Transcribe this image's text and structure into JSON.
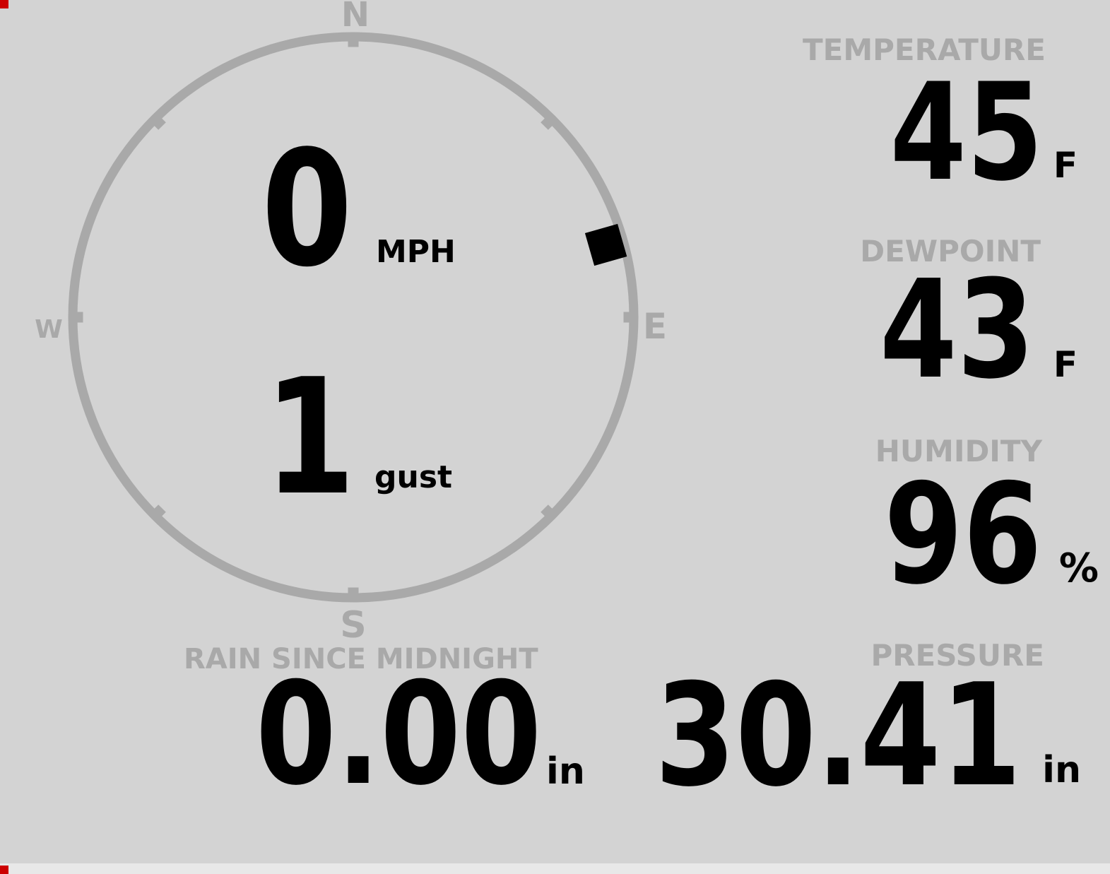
{
  "theme": {
    "background": "#d3d3d3",
    "muted_gray": "#a9a9a9",
    "value_black": "#000000",
    "corner_mark_red": "#cc0000"
  },
  "compass": {
    "labels": {
      "north": "N",
      "east": "E",
      "south": "S",
      "west": "W"
    },
    "wind_direction_deg": 74,
    "speed": {
      "value": "0",
      "unit": "MPH"
    },
    "gust": {
      "value": "1",
      "unit": "gust"
    }
  },
  "metrics": {
    "temperature": {
      "label": "TEMPERATURE",
      "value": "45",
      "unit": "F"
    },
    "dewpoint": {
      "label": "DEWPOINT",
      "value": "43",
      "unit": "F"
    },
    "humidity": {
      "label": "HUMIDITY",
      "value": "96",
      "unit": "%"
    },
    "rain": {
      "label": "RAIN SINCE MIDNIGHT",
      "value": "0.00",
      "unit": "in"
    },
    "pressure": {
      "label": "PRESSURE",
      "value": "30.41",
      "unit": "in"
    }
  }
}
